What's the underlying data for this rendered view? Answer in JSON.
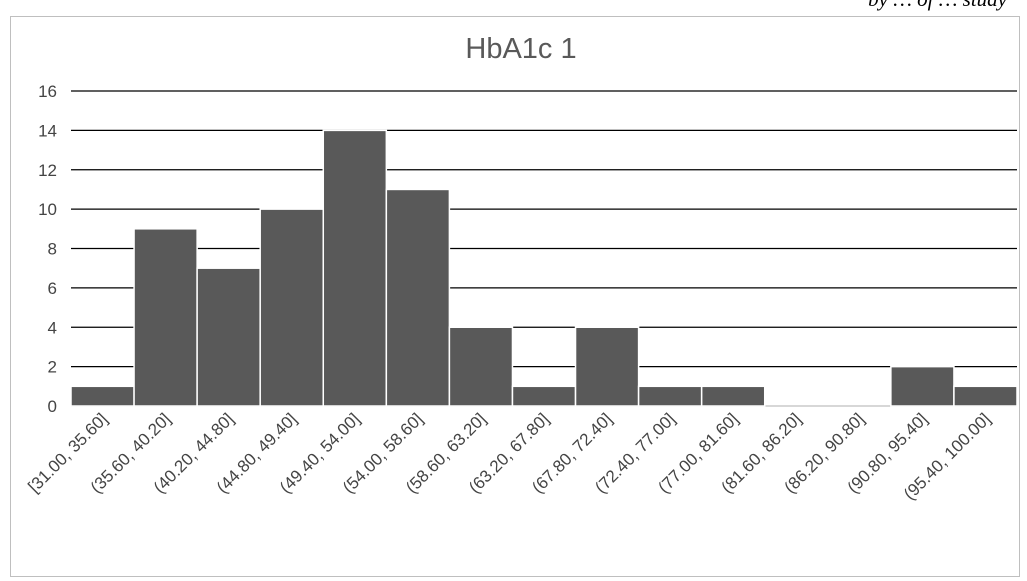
{
  "header_fragment": "by … of … study",
  "chart_data": {
    "type": "bar",
    "title": "HbA1c 1",
    "xlabel": "",
    "ylabel": "",
    "ylim": [
      0,
      16
    ],
    "yticks": [
      "0",
      "2",
      "4",
      "6",
      "8",
      "10",
      "12",
      "14",
      "16"
    ],
    "grid": true,
    "legend": "none",
    "bar_color": "#595959",
    "categories": [
      "[31.00, 35.60]",
      "(35.60, 40.20]",
      "(40.20, 44.80]",
      "(44.80, 49.40]",
      "(49.40, 54.00]",
      "(54.00, 58.60]",
      "(58.60, 63.20]",
      "(63.20, 67.80]",
      "(67.80, 72.40]",
      "(72.40, 77.00]",
      "(77.00, 81.60]",
      "(81.60, 86.20]",
      "(86.20, 90.80]",
      "(90.80, 95.40]",
      "(95.40, 100.00]"
    ],
    "values": [
      1,
      9,
      7,
      10,
      14,
      11,
      4,
      1,
      4,
      1,
      1,
      0,
      0,
      2,
      1
    ]
  }
}
